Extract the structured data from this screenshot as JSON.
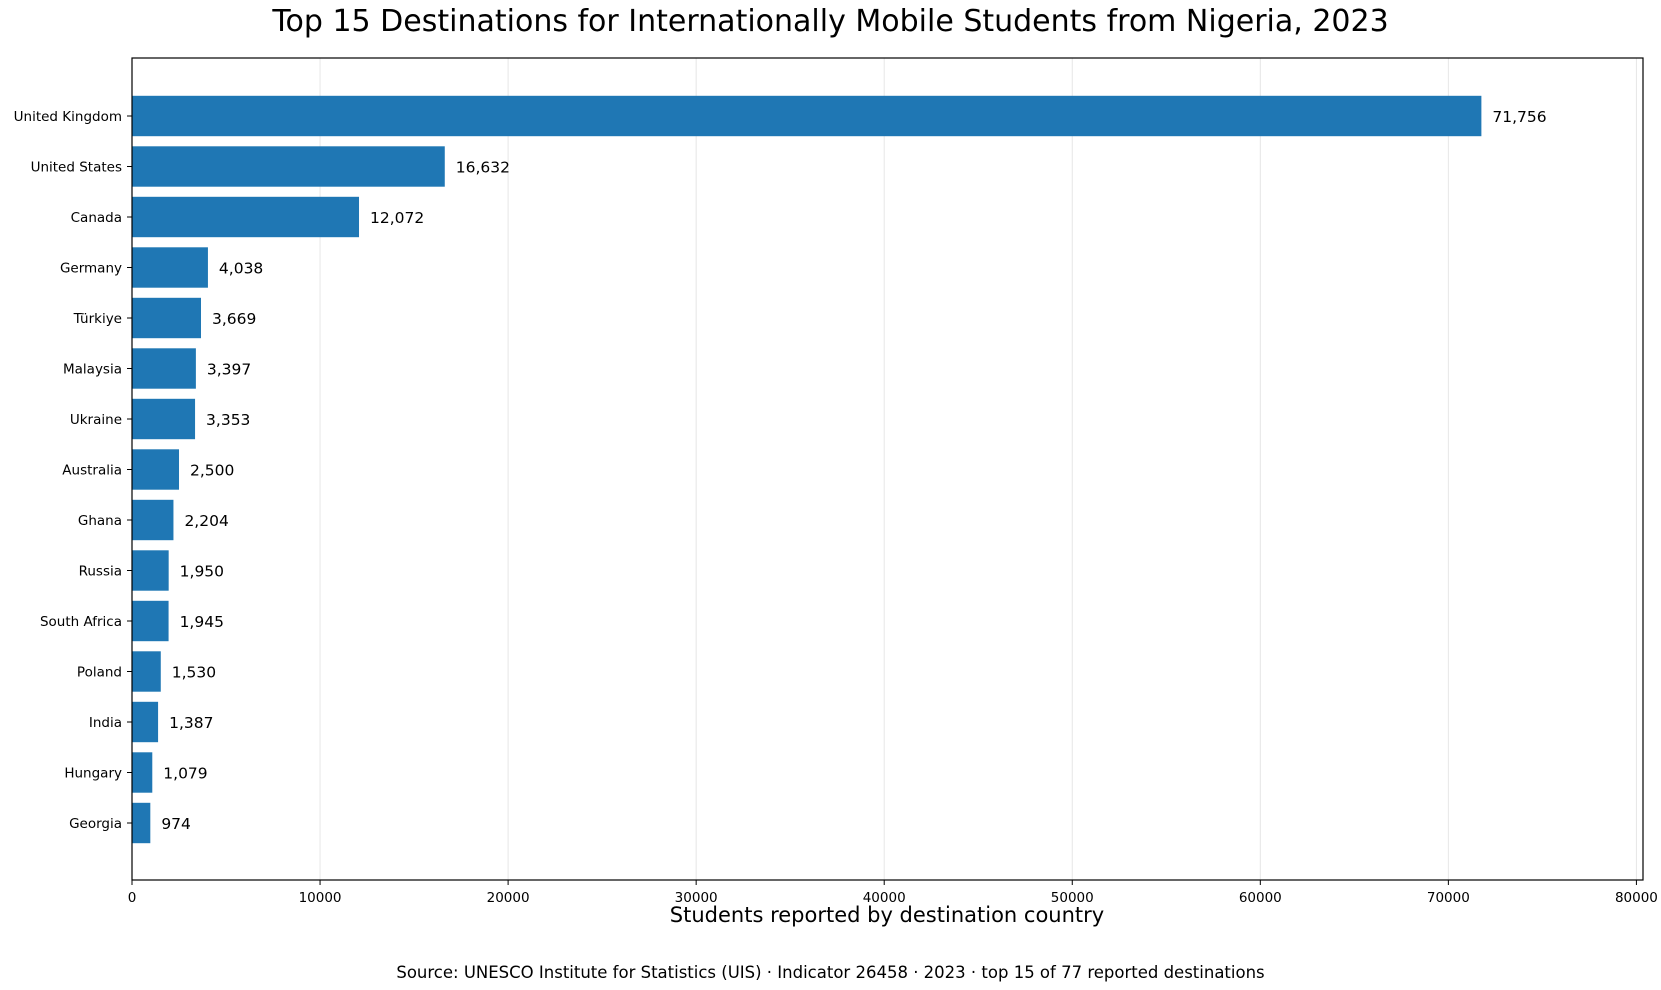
{
  "chart_data": {
    "type": "bar",
    "orientation": "horizontal",
    "title": "Top 15 Destinations for Internationally Mobile Students from Nigeria, 2023",
    "xlabel": "Students reported by destination country",
    "ylabel": "",
    "xlim": [
      0,
      80350
    ],
    "xticks": [
      0,
      10000,
      20000,
      30000,
      40000,
      50000,
      60000,
      70000,
      80000
    ],
    "grid": "vertical",
    "legend": "none",
    "bar_color": "#1f77b4",
    "categories": [
      "United Kingdom",
      "United States",
      "Canada",
      "Germany",
      "Türkiye",
      "Malaysia",
      "Ukraine",
      "Australia",
      "Ghana",
      "Russia",
      "South Africa",
      "Poland",
      "India",
      "Hungary",
      "Georgia"
    ],
    "values": [
      71756,
      16632,
      12072,
      4038,
      3669,
      3397,
      3353,
      2500,
      2204,
      1950,
      1945,
      1530,
      1387,
      1079,
      974
    ],
    "data_labels": [
      "71,756",
      "16,632",
      "12,072",
      "4,038",
      "3,669",
      "3,397",
      "3,353",
      "2,500",
      "2,204",
      "1,950",
      "1,945",
      "1,530",
      "1,387",
      "1,079",
      "974"
    ],
    "source": "Source: UNESCO Institute for Statistics (UIS) · Indicator 26458 · 2023 · top 15 of 77 reported destinations"
  }
}
